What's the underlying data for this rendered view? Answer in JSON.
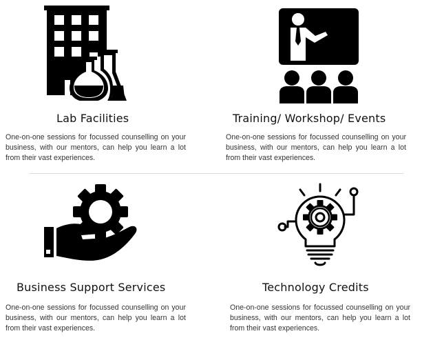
{
  "cards": [
    {
      "title": "Lab Facilities",
      "description": "One-on-one sessions for focussed counselling on your business, with our mentors, can help you learn a lot from their vast experiences.",
      "icon": "lab-building-icon"
    },
    {
      "title": "Training/ Workshop/ Events",
      "description": "One-on-one sessions for focussed counselling on your business, with our mentors, can help you learn a lot from their vast experiences.",
      "icon": "presentation-icon"
    },
    {
      "title": "Business Support Services",
      "description": "One-on-one sessions for focussed counselling on your business, with our mentors, can help you learn a lot from their vast experiences.",
      "icon": "hand-gear-icon"
    },
    {
      "title": "Technology Credits",
      "description": "One-on-one sessions for focussed counselling on your business, with our mentors, can help you learn a lot from their vast experiences.",
      "icon": "lightbulb-gear-icon"
    }
  ],
  "colors": {
    "icon": "#000000",
    "title": "#111111",
    "text": "#333333",
    "divider": "#d9d9d9"
  }
}
